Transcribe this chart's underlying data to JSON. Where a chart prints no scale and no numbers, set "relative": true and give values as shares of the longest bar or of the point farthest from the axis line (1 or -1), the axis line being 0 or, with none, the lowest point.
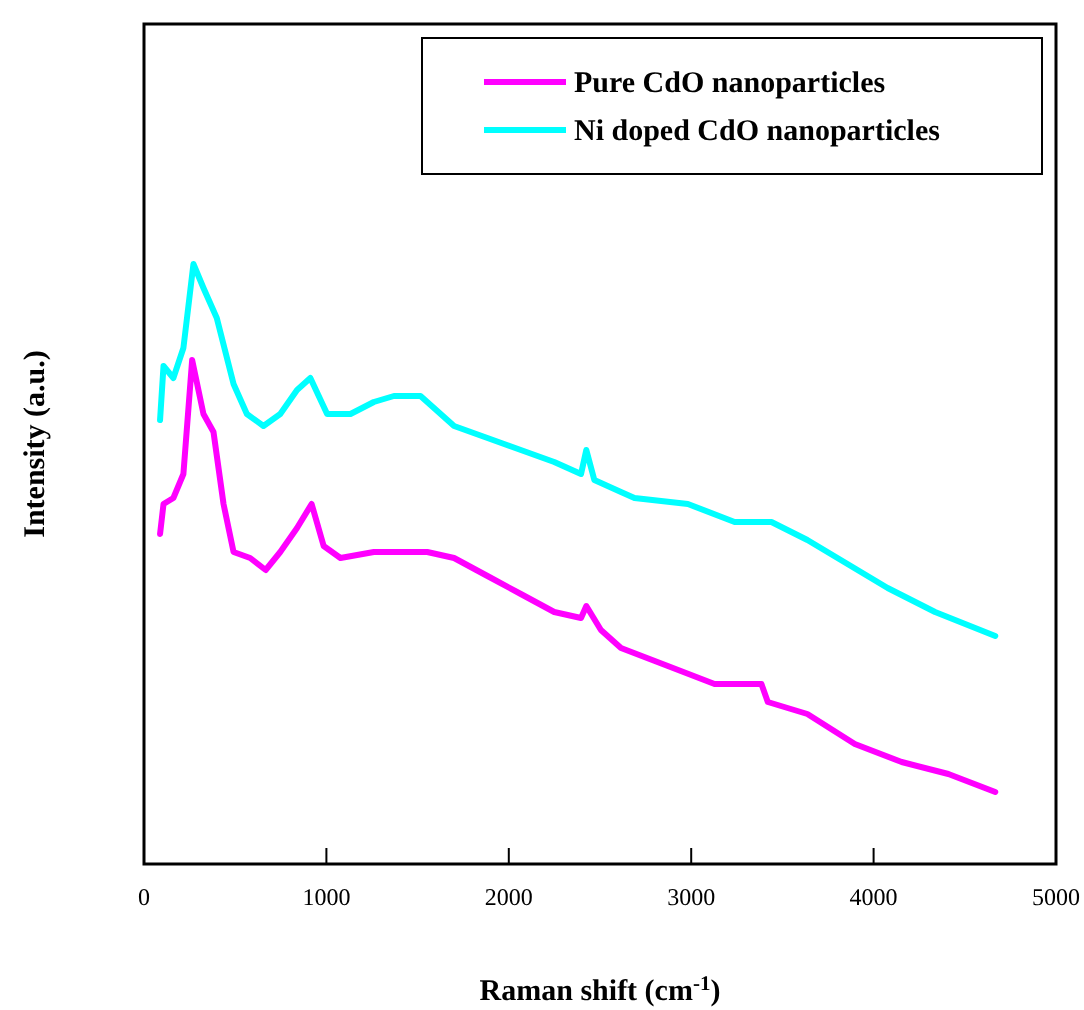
{
  "chart_data": {
    "type": "line",
    "relative": true,
    "xlabel": "Raman shift (cm$^{-1}$)",
    "ylabel": "Intensity (a.u.)",
    "xlim": [
      0,
      5000
    ],
    "xticks": [
      0,
      1000,
      2000,
      3000,
      4000,
      5000
    ],
    "legend": "top right",
    "series": [
      {
        "name": "Pure CdO nanoparticles",
        "color": "#ff00ff",
        "x": [
          88,
          107,
          161,
          216,
          264,
          326,
          381,
          436,
          491,
          582,
          667,
          747,
          839,
          919,
          985,
          1077,
          1260,
          1407,
          1553,
          1700,
          1883,
          2066,
          2249,
          2396,
          2425,
          2505,
          2615,
          2872,
          3128,
          3385,
          3420,
          3637,
          3897,
          4154,
          4410,
          4667
        ],
        "values": [
          0.55,
          0.6,
          0.61,
          0.65,
          0.84,
          0.75,
          0.72,
          0.6,
          0.52,
          0.51,
          0.49,
          0.52,
          0.56,
          0.6,
          0.53,
          0.51,
          0.52,
          0.52,
          0.52,
          0.51,
          0.48,
          0.45,
          0.42,
          0.41,
          0.43,
          0.39,
          0.36,
          0.33,
          0.3,
          0.3,
          0.27,
          0.25,
          0.2,
          0.17,
          0.15,
          0.12
        ]
      },
      {
        "name": "Ni doped CdO nanoparticles",
        "color": "#00ffff",
        "x": [
          88,
          107,
          161,
          216,
          271,
          326,
          399,
          491,
          564,
          655,
          747,
          839,
          912,
          1004,
          1132,
          1260,
          1370,
          1516,
          1700,
          1883,
          2066,
          2249,
          2396,
          2425,
          2469,
          2615,
          2689,
          2982,
          3238,
          3440,
          3637,
          3857,
          4077,
          4337,
          4667
        ],
        "values": [
          0.74,
          0.83,
          0.81,
          0.86,
          1.0,
          0.96,
          0.91,
          0.8,
          0.75,
          0.73,
          0.75,
          0.79,
          0.81,
          0.75,
          0.75,
          0.77,
          0.78,
          0.78,
          0.73,
          0.71,
          0.69,
          0.67,
          0.65,
          0.69,
          0.64,
          0.62,
          0.61,
          0.6,
          0.57,
          0.57,
          0.54,
          0.5,
          0.46,
          0.42,
          0.38
        ]
      }
    ]
  }
}
